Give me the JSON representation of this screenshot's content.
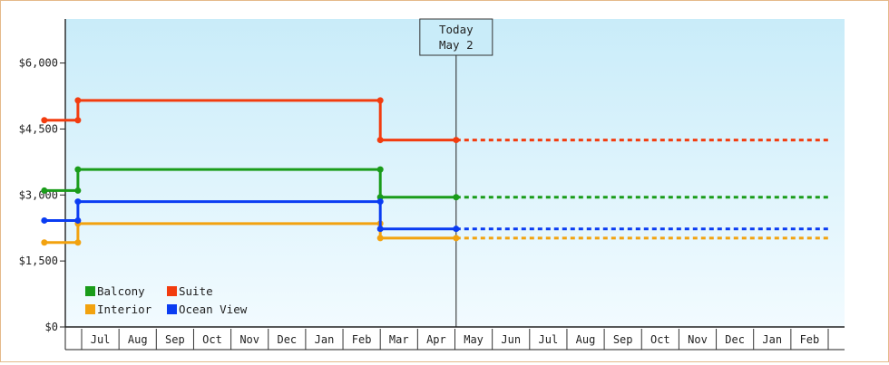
{
  "chart_data": {
    "type": "line",
    "title": "",
    "xlabel": "",
    "ylabel": "",
    "ylim": [
      0,
      7000
    ],
    "y_ticks": [
      0,
      1500,
      3000,
      4500,
      6000
    ],
    "y_tick_labels": [
      "$0",
      "$1,500",
      "$3,000",
      "$4,500",
      "$6,000"
    ],
    "x_range": [
      "2025-06-01",
      "2026-03-01"
    ],
    "x_tick_labels": [
      "Jul",
      "Aug",
      "Sep",
      "Oct",
      "Nov",
      "Dec",
      "Jan",
      "Feb",
      "Mar",
      "Apr",
      "May",
      "Jun",
      "Jul",
      "Aug",
      "Sep",
      "Oct",
      "Nov",
      "Dec",
      "Jan",
      "Feb"
    ],
    "grid": false,
    "legend_position": "bottom-left",
    "background_gradient": [
      "#c9ecf9",
      "#f2fbff"
    ],
    "annotation": {
      "line1": "Today",
      "line2": "May 2",
      "date": "2025-05-02"
    },
    "forecast_style": "dotted line after Today",
    "series": [
      {
        "name": "Balcony",
        "color": "#1a9c1a",
        "values": [
          {
            "date": "2024-06-01",
            "y": 3100
          },
          {
            "date": "2024-06-28",
            "y": 3100
          },
          {
            "date": "2024-06-28",
            "y": 3580
          },
          {
            "date": "2025-03-01",
            "y": 3580
          },
          {
            "date": "2025-03-01",
            "y": 2950
          },
          {
            "date": "2025-05-02",
            "y": 2950
          }
        ],
        "forecast": [
          {
            "date": "2025-05-02",
            "y": 2950
          },
          {
            "date": "2026-03-01",
            "y": 2950
          }
        ]
      },
      {
        "name": "Suite",
        "color": "#f23c0f",
        "values": [
          {
            "date": "2024-06-01",
            "y": 4700
          },
          {
            "date": "2024-06-28",
            "y": 4700
          },
          {
            "date": "2024-06-28",
            "y": 5150
          },
          {
            "date": "2025-03-01",
            "y": 5150
          },
          {
            "date": "2025-03-01",
            "y": 4250
          },
          {
            "date": "2025-05-02",
            "y": 4250
          }
        ],
        "forecast": [
          {
            "date": "2025-05-02",
            "y": 4250
          },
          {
            "date": "2026-03-01",
            "y": 4250
          }
        ]
      },
      {
        "name": "Interior",
        "color": "#f2a20f",
        "values": [
          {
            "date": "2024-06-01",
            "y": 1920
          },
          {
            "date": "2024-06-28",
            "y": 1920
          },
          {
            "date": "2024-06-28",
            "y": 2350
          },
          {
            "date": "2025-03-01",
            "y": 2350
          },
          {
            "date": "2025-03-01",
            "y": 2020
          },
          {
            "date": "2025-05-02",
            "y": 2020
          }
        ],
        "forecast": [
          {
            "date": "2025-05-02",
            "y": 2020
          },
          {
            "date": "2026-03-01",
            "y": 2020
          }
        ]
      },
      {
        "name": "Ocean View",
        "color": "#0a3cf2",
        "values": [
          {
            "date": "2024-06-01",
            "y": 2420
          },
          {
            "date": "2024-06-28",
            "y": 2420
          },
          {
            "date": "2024-06-28",
            "y": 2850
          },
          {
            "date": "2025-03-01",
            "y": 2850
          },
          {
            "date": "2025-03-01",
            "y": 2230
          },
          {
            "date": "2025-05-02",
            "y": 2230
          }
        ],
        "forecast": [
          {
            "date": "2025-05-02",
            "y": 2230
          },
          {
            "date": "2026-03-01",
            "y": 2230
          }
        ]
      }
    ]
  }
}
